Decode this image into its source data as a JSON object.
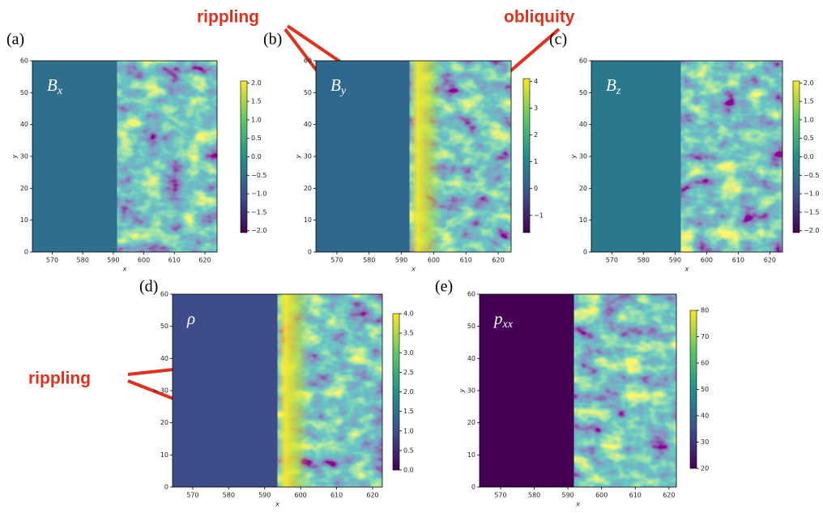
{
  "annotations": [
    "rippling",
    "obliquity",
    "rippling"
  ],
  "chart_data": [
    {
      "type": "heatmap",
      "panel_label": "(a)",
      "field_symbol": "B",
      "field_subscript": "x",
      "x_label": "x",
      "y_label": "y",
      "xlim": [
        563.5,
        624
      ],
      "ylim": [
        0,
        60
      ],
      "xticks": [
        570,
        580,
        590,
        600,
        610,
        620
      ],
      "yticks": [
        0,
        10,
        20,
        30,
        40,
        50,
        60
      ],
      "colorbar_lim": [
        -2.05,
        2.05
      ],
      "colorbar_ticks": [
        {
          "value": 2,
          "label": "2.0"
        },
        {
          "value": 1.5,
          "label": "1.5"
        },
        {
          "value": 1,
          "label": "1.0"
        },
        {
          "value": 0.5,
          "label": "0.5"
        },
        {
          "value": 0,
          "label": "0.0"
        },
        {
          "value": -0.5,
          "label": "−0.5"
        },
        {
          "value": -1,
          "label": "−1.0"
        },
        {
          "value": -1.5,
          "label": "−1.5"
        },
        {
          "value": -2,
          "label": "−2.0"
        }
      ]
    },
    {
      "type": "heatmap",
      "panel_label": "(b)",
      "field_symbol": "B",
      "field_subscript": "y",
      "x_label": "x",
      "y_label": "y",
      "xlim": [
        563.5,
        624
      ],
      "ylim": [
        0,
        60
      ],
      "xticks": [
        570,
        580,
        590,
        600,
        610,
        620
      ],
      "yticks": [
        0,
        10,
        20,
        30,
        40,
        50,
        60
      ],
      "colorbar_lim": [
        -1.64,
        4.1
      ],
      "colorbar_ticks": [
        4,
        3,
        2,
        1,
        0,
        {
          "value": -1,
          "label": "−1"
        }
      ]
    },
    {
      "type": "heatmap",
      "panel_label": "(c)",
      "field_symbol": "B",
      "field_subscript": "z",
      "x_label": "x",
      "y_label": "y",
      "xlim": [
        563.5,
        624
      ],
      "ylim": [
        0,
        60
      ],
      "xticks": [
        570,
        580,
        590,
        600,
        610,
        620
      ],
      "yticks": [
        0,
        10,
        20,
        30,
        40,
        50,
        60
      ],
      "colorbar_lim": [
        -2.05,
        2.05
      ],
      "colorbar_ticks": [
        {
          "value": 2,
          "label": "2.0"
        },
        {
          "value": 1.5,
          "label": "1.5"
        },
        {
          "value": 1,
          "label": "1.0"
        },
        {
          "value": 0.5,
          "label": "0.5"
        },
        {
          "value": 0,
          "label": "0.0"
        },
        {
          "value": -0.5,
          "label": "−0.5"
        },
        {
          "value": -1,
          "label": "−1.0"
        },
        {
          "value": -1.5,
          "label": "−1.5"
        },
        {
          "value": -2,
          "label": "−2.0"
        }
      ]
    },
    {
      "type": "heatmap",
      "panel_label": "(d)",
      "field_symbol": "ρ",
      "field_subscript": "",
      "x_label": "x",
      "y_label": "y",
      "xlim": [
        564.4,
        622.7
      ],
      "ylim": [
        0,
        60
      ],
      "xticks": [
        570,
        580,
        590,
        600,
        610,
        620
      ],
      "yticks": [
        0,
        10,
        20,
        30,
        40,
        50,
        60
      ],
      "colorbar_lim": [
        0,
        4
      ],
      "colorbar_ticks": [
        {
          "value": 4,
          "label": "4.0"
        },
        {
          "value": 3.5,
          "label": "3.5"
        },
        {
          "value": 3,
          "label": "3.0"
        },
        {
          "value": 2.5,
          "label": "2.5"
        },
        {
          "value": 2,
          "label": "2.0"
        },
        {
          "value": 1.5,
          "label": "1.5"
        },
        {
          "value": 1,
          "label": "1.0"
        },
        {
          "value": 0.5,
          "label": "0.5"
        },
        {
          "value": 0,
          "label": "0.0"
        }
      ]
    },
    {
      "type": "heatmap",
      "panel_label": "(e)",
      "field_symbol": "p",
      "field_subscript": "xx",
      "x_label": "x",
      "y_label": "y",
      "xlim": [
        563.75,
        622.2
      ],
      "ylim": [
        0,
        60
      ],
      "xticks": [
        570,
        580,
        590,
        600,
        610,
        620
      ],
      "yticks": [
        0,
        10,
        20,
        30,
        40,
        50,
        60
      ],
      "colorbar_lim": [
        20,
        80
      ],
      "colorbar_ticks": [
        80,
        70,
        60,
        50,
        40,
        30,
        20
      ]
    }
  ]
}
